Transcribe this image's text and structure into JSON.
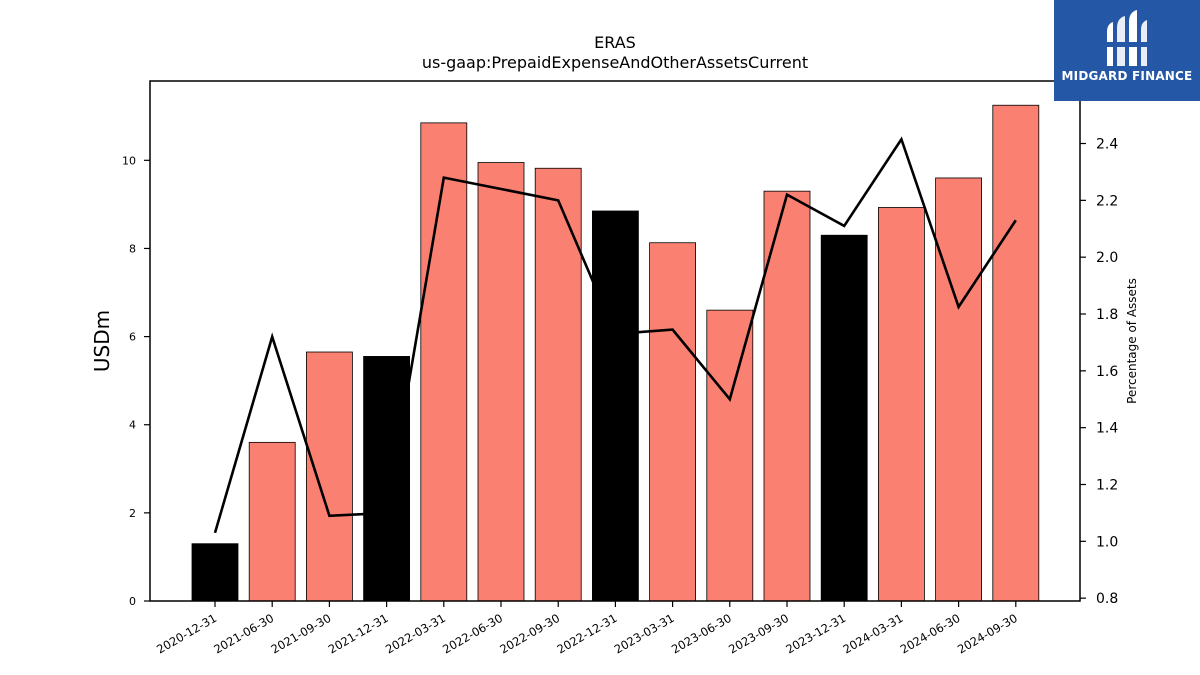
{
  "brand": {
    "name": "MIDGARD FINANCE",
    "bg_color": "#2557a7"
  },
  "chart_data": {
    "type": "bar",
    "title": "ERAS",
    "subtitle": "us-gaap:PrepaidExpenseAndOtherAssetsCurrent",
    "ylabel": "USDm",
    "y2label": "Percentage of Assets",
    "ylim": [
      0,
      11.8
    ],
    "y2lim": [
      0.79,
      2.62
    ],
    "yticks": [
      0,
      2,
      4,
      6,
      8,
      10
    ],
    "y2ticks": [
      0.8,
      1.0,
      1.2,
      1.4,
      1.6,
      1.8,
      2.0,
      2.2,
      2.4
    ],
    "categories": [
      "2020-12-31",
      "2021-06-30",
      "2021-09-30",
      "2021-12-31",
      "2022-03-31",
      "2022-06-30",
      "2022-09-30",
      "2022-12-31",
      "2023-03-31",
      "2023-06-30",
      "2023-09-30",
      "2023-12-31",
      "2024-03-31",
      "2024-06-30",
      "2024-09-30"
    ],
    "series": [
      {
        "type": "bar",
        "values": [
          1.3,
          3.6,
          5.65,
          5.55,
          10.85,
          9.95,
          9.82,
          8.85,
          8.13,
          6.6,
          9.3,
          8.3,
          8.93,
          9.6,
          11.25
        ],
        "colors": [
          "#000000",
          "#fa8072",
          "#fa8072",
          "#000000",
          "#fa8072",
          "#fa8072",
          "#fa8072",
          "#000000",
          "#fa8072",
          "#fa8072",
          "#fa8072",
          "#000000",
          "#fa8072",
          "#fa8072",
          "#fa8072"
        ]
      },
      {
        "type": "line",
        "axis": "right",
        "color": "#000000",
        "values": [
          1.03,
          1.72,
          1.09,
          1.1,
          2.28,
          2.24,
          2.2,
          1.73,
          1.745,
          1.5,
          2.22,
          2.11,
          2.415,
          1.825,
          2.13
        ]
      }
    ],
    "grid": false,
    "legend": "none"
  }
}
